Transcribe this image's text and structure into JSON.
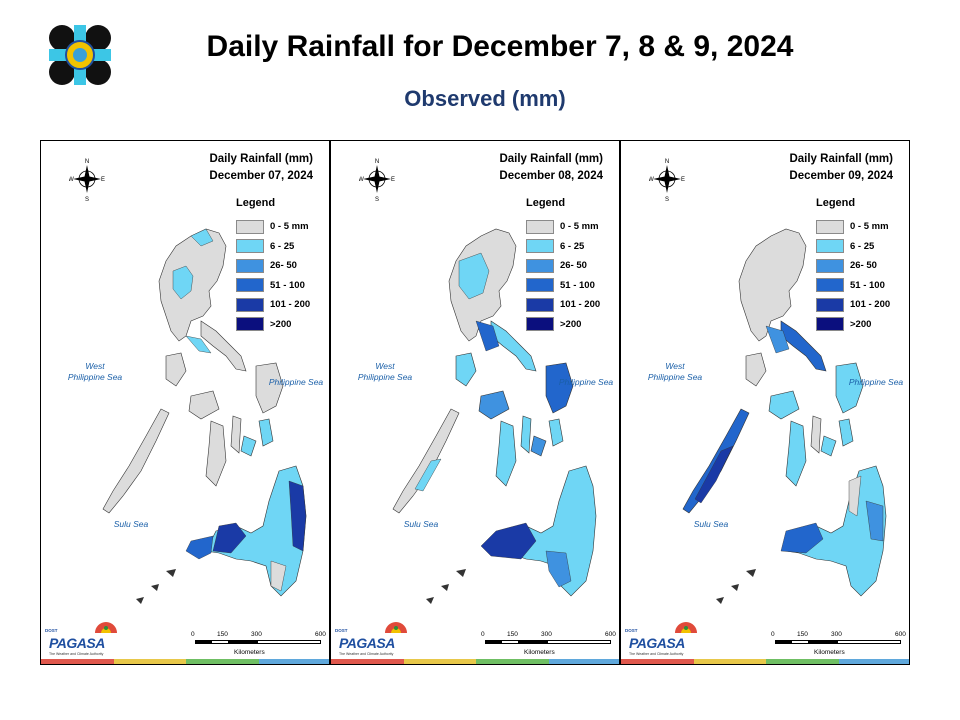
{
  "title": "Daily Rainfall for December 7, 8 & 9, 2024",
  "subtitle": "Observed (mm)",
  "legend_title": "Legend",
  "legend": [
    {
      "label": "0 - 5 mm",
      "color": "#dcdcdc"
    },
    {
      "label": "6 - 25",
      "color": "#6fd6f5"
    },
    {
      "label": "26- 50",
      "color": "#3f92e0"
    },
    {
      "label": "51 - 100",
      "color": "#2266cc"
    },
    {
      "label": "101 - 200",
      "color": "#1a3aa6"
    },
    {
      "label": ">200",
      "color": "#0b0f7e"
    }
  ],
  "panels": [
    {
      "heading": "Daily Rainfall (mm)",
      "date": "December 07, 2024"
    },
    {
      "heading": "Daily Rainfall (mm)",
      "date": "December 08, 2024"
    },
    {
      "heading": "Daily Rainfall (mm)",
      "date": "December 09, 2024"
    }
  ],
  "seas": {
    "west": "West\nPhilippine Sea",
    "east": "Philippine Sea",
    "sulu": "Sulu Sea"
  },
  "compass": {
    "n": "N",
    "s": "S",
    "e": "E",
    "w": "W"
  },
  "scale": {
    "ticks": [
      "0",
      "150",
      "300",
      "600"
    ],
    "unit": "Kilometers"
  },
  "brand": {
    "dost": "DOST",
    "name": "PAGASA",
    "tagline": "The Weather and Climate Authority"
  },
  "stripe_colors": [
    "#e0584d",
    "#e8c84a",
    "#6fbf63",
    "#5fa8dc"
  ]
}
